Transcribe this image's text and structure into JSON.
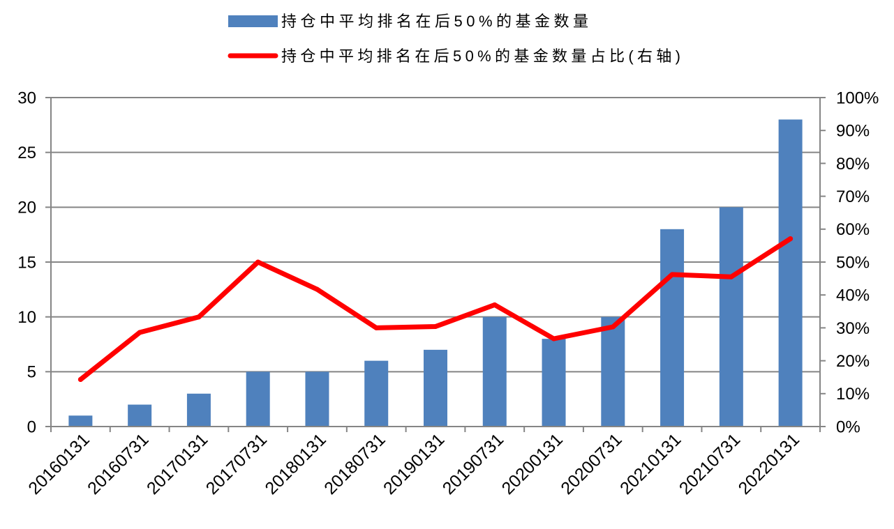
{
  "colors": {
    "bar": "#4F81BD",
    "line": "#FF0000",
    "grid": "#858585",
    "axis": "#858585",
    "text": "#000000",
    "background": "#FFFFFF"
  },
  "chart_data": {
    "type": "bar",
    "categories": [
      "20160131",
      "20160731",
      "20170131",
      "20170731",
      "20180131",
      "20180731",
      "20190131",
      "20190731",
      "20200131",
      "20200731",
      "20210131",
      "20210731",
      "20220131"
    ],
    "series": [
      {
        "name": "持仓中平均排名在后50%的基金数量",
        "type": "bar",
        "axis": "left",
        "values": [
          1,
          2,
          3,
          5,
          5,
          6,
          7,
          10,
          8,
          10,
          18,
          20,
          28
        ]
      },
      {
        "name": "持仓中平均排名在后50%的基金数量占比(右轴)",
        "type": "line",
        "axis": "right",
        "values": [
          14.3,
          28.6,
          33.3,
          50.0,
          41.7,
          30.0,
          30.4,
          37.0,
          26.7,
          30.3,
          46.2,
          45.5,
          57.1
        ]
      }
    ],
    "y_left": {
      "ylim": [
        0,
        30
      ],
      "ticks": [
        0,
        5,
        10,
        15,
        20,
        25,
        30
      ],
      "tick_labels": [
        "0",
        "5",
        "10",
        "15",
        "20",
        "25",
        "30"
      ]
    },
    "y_right": {
      "ylim": [
        0,
        100
      ],
      "ticks": [
        0,
        10,
        20,
        30,
        40,
        50,
        60,
        70,
        80,
        90,
        100
      ],
      "tick_labels": [
        "0%",
        "10%",
        "20%",
        "30%",
        "40%",
        "50%",
        "60%",
        "70%",
        "80%",
        "90%",
        "100%"
      ]
    },
    "grid": true,
    "legend": "top"
  }
}
